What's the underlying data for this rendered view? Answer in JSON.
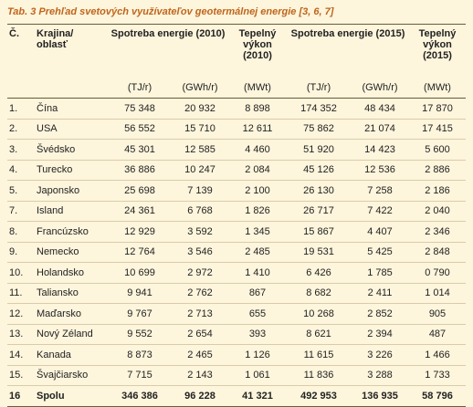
{
  "title": "Tab. 3 Prehľad svetových využívateľov geotermálnej energie [3, 6, 7]",
  "table": {
    "header": {
      "number": "Č.",
      "region": "Krajina/\noblasť",
      "consumption_2010": "Spotreba energie (2010)",
      "power_2010": "Tepelný\nvýkon\n(2010)",
      "consumption_2015": "Spotreba energie (2015)",
      "power_2015": "Tepelný\nvýkon\n(2015)"
    },
    "units": [
      "(TJ/r)",
      "(GWh/r)",
      "(MWt)",
      "(TJ/r)",
      "(GWh/r)",
      "(MWt)"
    ],
    "rows": [
      [
        "1.",
        "Čína",
        "75 348",
        "20 932",
        "8 898",
        "174 352",
        "48 434",
        "17 870"
      ],
      [
        "2.",
        "USA",
        "56 552",
        "15 710",
        "12 611",
        "75 862",
        "21 074",
        "17 415"
      ],
      [
        "3.",
        "Švédsko",
        "45 301",
        "12 585",
        "4 460",
        "51 920",
        "14 423",
        "5 600"
      ],
      [
        "4.",
        "Turecko",
        "36 886",
        "10 247",
        "2 084",
        "45 126",
        "12 536",
        "2 886"
      ],
      [
        "5.",
        "Japonsko",
        "25 698",
        "7 139",
        "2 100",
        "26 130",
        "7 258",
        "2 186"
      ],
      [
        "7.",
        "Island",
        "24 361",
        "6 768",
        "1 826",
        "26 717",
        "7 422",
        "2 040"
      ],
      [
        "8.",
        "Francúzsko",
        "12 929",
        "3 592",
        "1 345",
        "15 867",
        "4 407",
        "2 346"
      ],
      [
        "9.",
        "Nemecko",
        "12 764",
        "3 546",
        "2 485",
        "19 531",
        "5 425",
        "2 848"
      ],
      [
        "10.",
        "Holandsko",
        "10 699",
        "2 972",
        "1 410",
        "6 426",
        "1 785",
        "0 790"
      ],
      [
        "11.",
        "Taliansko",
        "9 941",
        "2 762",
        "867",
        "8 682",
        "2 411",
        "1 014"
      ],
      [
        "12.",
        "Maďarsko",
        "9 767",
        "2 713",
        "655",
        "10 268",
        "2 852",
        "905"
      ],
      [
        "13.",
        "Nový Zéland",
        "9 552",
        "2 654",
        "393",
        "8 621",
        "2 394",
        "487"
      ],
      [
        "14.",
        "Kanada",
        "8 873",
        "2 465",
        "1 126",
        "11 615",
        "3 226",
        "1 466"
      ],
      [
        "15.",
        "Švajčiarsko",
        "7 715",
        "2 143",
        "1 061",
        "11 836",
        "3 288",
        "1 733"
      ]
    ],
    "total": [
      "16",
      "Spolu",
      "346 386",
      "96 228",
      "41 321",
      "492 953",
      "136 935",
      "58 796"
    ]
  }
}
